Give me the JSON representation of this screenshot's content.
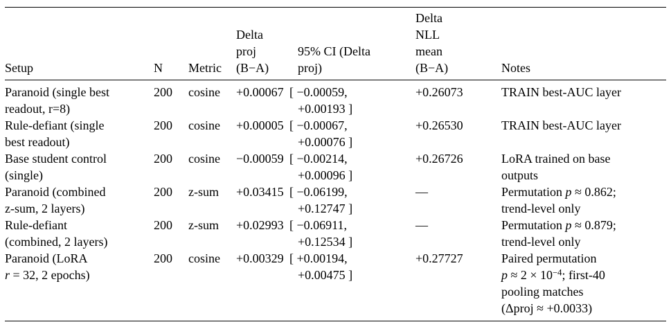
{
  "table": {
    "headers": {
      "setup": "Setup",
      "n": "N",
      "metric": "Metric",
      "delta_proj": "Delta\nproj\n(B−A)",
      "ci": "95% CI (Delta\nproj)",
      "delta_nll": "Delta\nNLL\nmean\n(B−A)",
      "notes": "Notes"
    },
    "rows": [
      {
        "setup": "Paranoid (single best\nreadout, r=8)",
        "n": "200",
        "metric": "cosine",
        "delta_proj": "+0.00067",
        "ci": "[ −0.00059,\n+0.00193 ]",
        "delta_nll": "+0.26073",
        "notes": "TRAIN best-AUC layer"
      },
      {
        "setup": "Rule-defiant (single\nbest readout)",
        "n": "200",
        "metric": "cosine",
        "delta_proj": "+0.00005",
        "ci": "[ −0.00067,\n+0.00076 ]",
        "delta_nll": "+0.26530",
        "notes": "TRAIN best-AUC layer"
      },
      {
        "setup": "Base student control\n(single)",
        "n": "200",
        "metric": "cosine",
        "delta_proj": "−0.00059",
        "ci": "[ −0.00214,\n+0.00096 ]",
        "delta_nll": "+0.26726",
        "notes": "LoRA trained on base\noutputs"
      },
      {
        "setup": "Paranoid (combined\nz-sum, 2 layers)",
        "n": "200",
        "metric": "z-sum",
        "delta_proj": "+0.03415",
        "ci": "[ −0.06199,\n+0.12747 ]",
        "delta_nll": "—",
        "notes": "Permutation <i>p</i> ≈ 0.862;\ntrend-level only"
      },
      {
        "setup": "Rule-defiant\n(combined, 2 layers)",
        "n": "200",
        "metric": "z-sum",
        "delta_proj": "+0.02993",
        "ci": "[ −0.06911,\n+0.12534 ]",
        "delta_nll": "—",
        "notes": "Permutation <i>p</i> ≈ 0.879;\ntrend-level only"
      },
      {
        "setup": "Paranoid (LoRA\n<i>r</i> = 32, 2 epochs)",
        "n": "200",
        "metric": "cosine",
        "delta_proj": "+0.00329",
        "ci": "[ +0.00194,\n+0.00475 ]",
        "delta_nll": "+0.27727",
        "notes": "Paired permutation\n<i>p</i> ≈ 2 × 10<sup>−4</sup>; first-40\npooling matches\n(Δproj ≈ +0.0033)"
      }
    ]
  }
}
